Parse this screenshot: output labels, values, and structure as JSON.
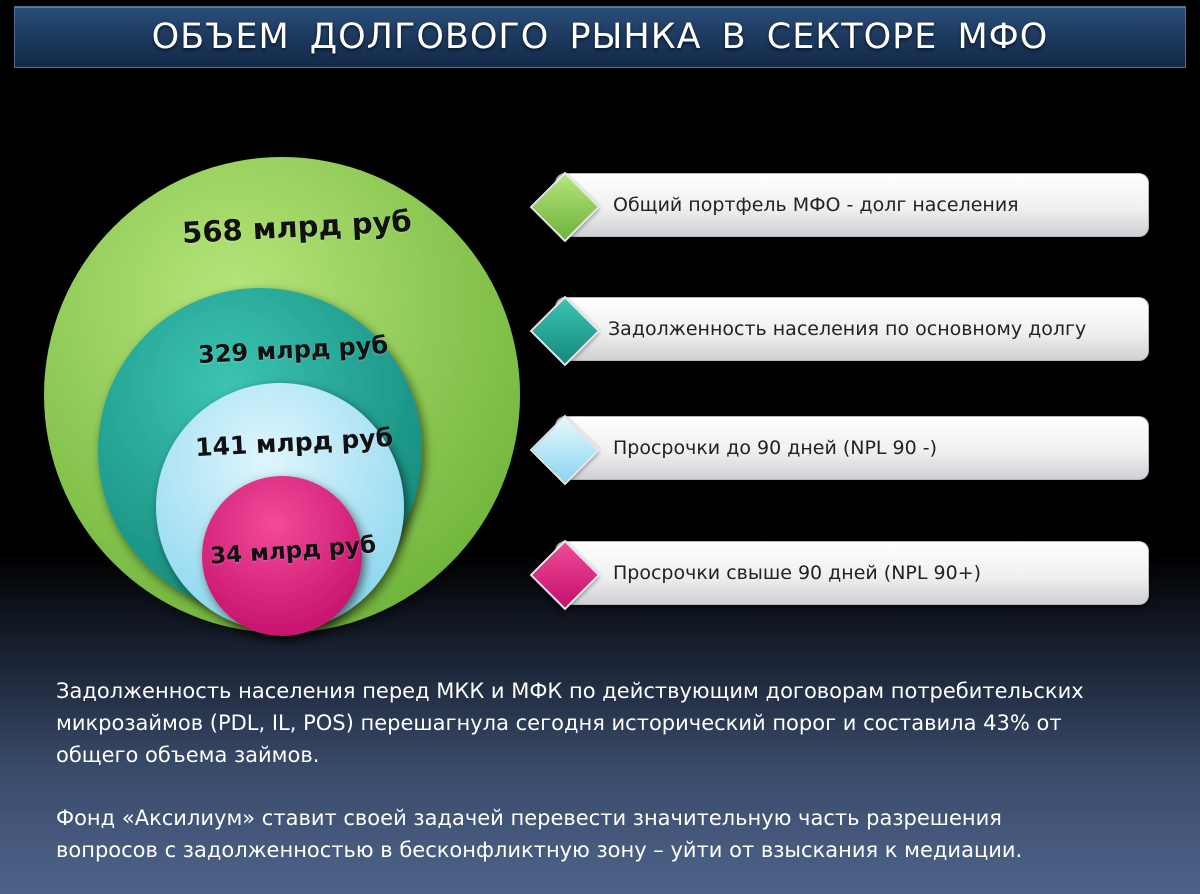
{
  "title": "ОБЪЕМ  ДОЛГОВОГО  РЫНКА  В  СЕКТОРЕ  МФО",
  "rings": [
    {
      "label": "568 млрд руб",
      "value": 568,
      "color": "#8dcd4e"
    },
    {
      "label": "329 млрд руб",
      "value": 329,
      "color": "#1fab9c"
    },
    {
      "label": "141 млрд руб",
      "value": 141,
      "color": "#a7e6f7"
    },
    {
      "label": "34 млрд руб",
      "value": 34,
      "color": "#e5197c"
    }
  ],
  "legend": [
    {
      "text": "Общий портфель МФО - долг населения",
      "color": "#8dcd4e"
    },
    {
      "text": "Задолженность населения по основному долгу",
      "color": "#1fab9c"
    },
    {
      "text": "Просрочки до 90 дней (NPL 90 -)",
      "color": "#bfe9f7"
    },
    {
      "text": "Просрочки свыше 90 дней (NPL 90+)",
      "color": "#e5197c"
    }
  ],
  "paragraphs": [
    "Задолженность населения перед МКК и МФК по действующим договорам потребительских микрозаймов (PDL, IL, POS)  перешагнула сегодня исторический порог и составила 43% от общего объема займов.",
    "Фонд «Аксилиум» ставит своей задачей перевести значительную часть разрешения вопросов с задолженностью в бесконфликтную зону – уйти от взыскания к медиации."
  ]
}
